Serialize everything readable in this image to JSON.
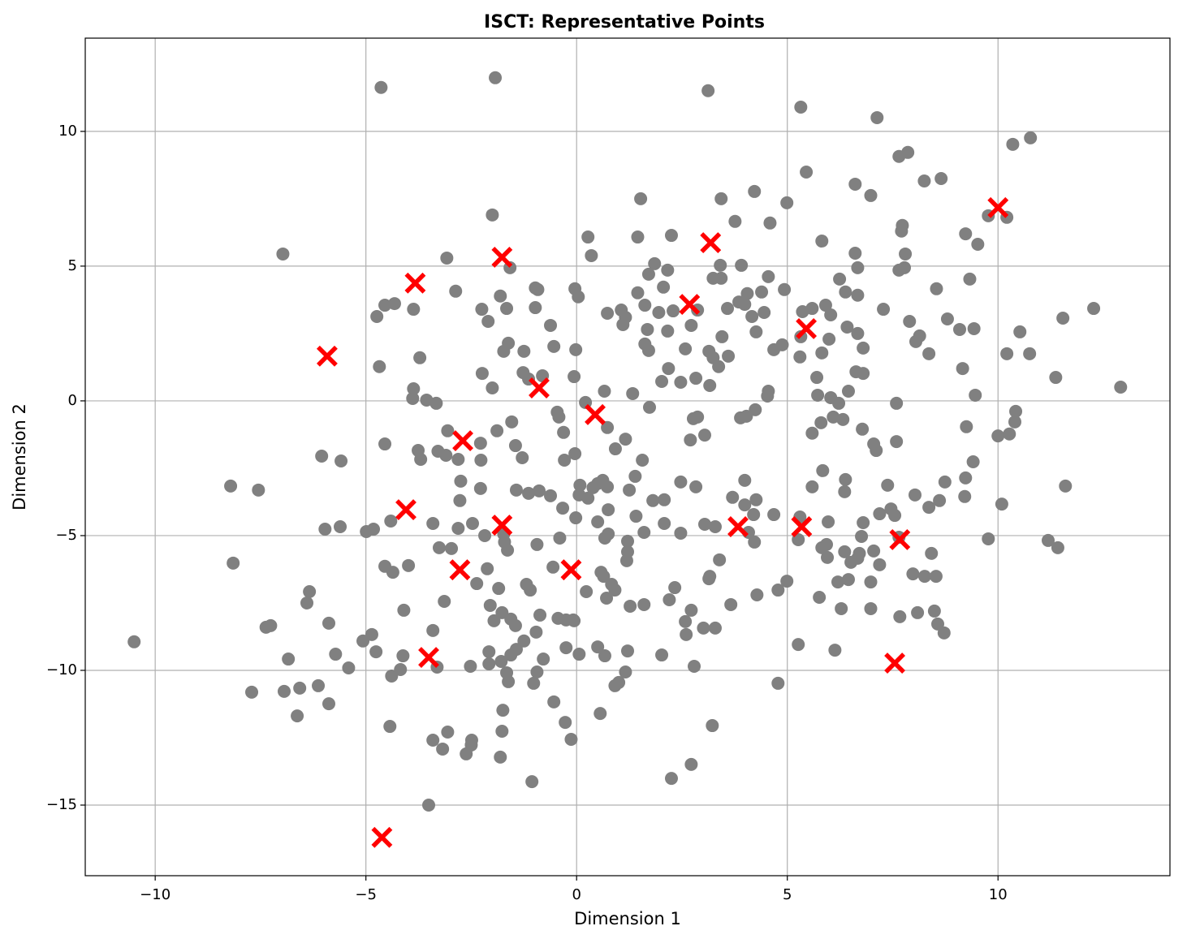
{
  "chart_data": {
    "type": "scatter",
    "title": "ISCT: Representative Points",
    "xlabel": "Dimension 1",
    "ylabel": "Dimension 2",
    "xlim": [
      -11.66,
      14.08
    ],
    "ylim": [
      -17.62,
      13.46
    ],
    "xticks": [
      {
        "value": -10,
        "label": "−10"
      },
      {
        "value": -5,
        "label": "−5"
      },
      0,
      5,
      10
    ],
    "yticks": [
      {
        "value": -15,
        "label": "−15"
      },
      {
        "value": -10,
        "label": "−10"
      },
      {
        "value": -5,
        "label": "−5"
      },
      0,
      5,
      10
    ],
    "grid": true,
    "series": [
      {
        "color": "#808080",
        "marker": "circle",
        "x": [
          -4.64,
          -1.93,
          3.12,
          5.32,
          7.13,
          7.86,
          7.65,
          10.35,
          10.77,
          5.45,
          8.25,
          8.65,
          6.61,
          6.98,
          4.22,
          1.52,
          3.43,
          4.99,
          3.76,
          4.59,
          7.73,
          7.71,
          9.77,
          10.21,
          9.23,
          9.52,
          -2.0,
          -6.97,
          -3.08,
          0.27,
          2.25,
          1.45,
          5.82,
          0.35,
          3.41,
          6.61,
          7.8,
          6.67,
          7.65,
          7.78,
          1.85,
          2.16,
          3.91,
          -1.58,
          1.71,
          3.24,
          3.43,
          4.55,
          6.24,
          9.33,
          8.54,
          -0.98,
          -0.92,
          -0.04,
          2.06,
          4.93,
          4.39,
          4.05,
          -2.87,
          -4.55,
          -4.32,
          -1.81,
          -1.66,
          0.04,
          1.45,
          1.62,
          6.38,
          5.91,
          6.67,
          7.28,
          12.27,
          -4.74,
          -3.87,
          -2.25,
          -2.1,
          -0.98,
          0.73,
          1.06,
          1.1,
          1.16,
          1.95,
          2.29,
          2.87,
          3.58,
          3.85,
          3.99,
          4.45,
          4.16,
          5.36,
          5.59,
          6.03,
          7.9,
          8.8,
          9.09,
          9.43,
          10.52,
          11.54,
          2.72,
          2.16,
          1.68,
          -0.62,
          3.45,
          4.26,
          5.32,
          5.99,
          6.42,
          6.67,
          8.14,
          8.05,
          -1.62,
          -1.73,
          -1.25,
          -0.54,
          -0.02,
          1.62,
          1.71,
          2.58,
          3.14,
          3.24,
          3.6,
          3.37,
          4.68,
          4.88,
          5.3,
          5.82,
          6.8,
          8.36,
          10.21,
          10.75,
          -3.72,
          -4.68,
          -2.24,
          2.18,
          2.83,
          5.7,
          6.63,
          6.8,
          9.16,
          11.37,
          12.91,
          -3.87,
          -3.56,
          -3.89,
          -3.33,
          -2.0,
          -1.27,
          -1.14,
          -0.81,
          -0.06,
          0.66,
          1.33,
          2.02,
          2.47,
          3.16,
          4.55,
          4.53,
          5.72,
          6.03,
          6.45,
          6.22,
          7.59,
          9.46,
          10.42,
          10.4,
          -0.46,
          -0.42,
          0.21,
          1.73,
          2.77,
          2.87,
          4.24,
          3.89,
          4.03,
          6.09,
          6.32,
          5.8,
          9.25,
          -1.54,
          0.73,
          -0.31,
          6.78,
          10.0,
          10.27,
          5.59,
          2.7,
          3.04,
          -3.06,
          -4.55,
          -2.28,
          -1.89,
          -1.45,
          1.16,
          0.92,
          7.05,
          7.59,
          7.11,
          -3.76,
          -3.7,
          -3.29,
          -3.1,
          -2.81,
          -2.27,
          -1.29,
          -0.29,
          -0.04,
          -6.05,
          -5.59,
          1.56,
          9.41,
          5.84,
          -2.75,
          1.39,
          0.62,
          0.39,
          0.08,
          0.5,
          0.73,
          2.47,
          2.83,
          3.99,
          5.59,
          6.38,
          7.38,
          8.74,
          9.23,
          11.6,
          -8.21,
          -7.55,
          -2.28,
          -1.43,
          -1.14,
          -0.89,
          -0.62,
          0.06,
          0.27,
          1.25,
          1.81,
          2.08,
          3.7,
          4.26,
          6.36,
          8.03,
          8.61,
          8.36,
          9.21,
          10.09,
          -2.77,
          -0.33,
          7.46,
          7.19,
          7.55,
          0.75,
          3.99,
          4.2,
          4.68,
          5.3,
          5.97,
          6.8,
          -4.41,
          -3.41,
          -2.47,
          -0.02,
          0.5,
          1.41,
          2.08,
          3.04,
          3.29,
          -5.97,
          -5.61,
          -4.99,
          -4.82,
          -2.81,
          -2.18,
          -1.73,
          -1.64,
          -1.71,
          -0.4,
          0.67,
          0.75,
          1.6,
          2.47,
          4.08,
          4.22,
          5.26,
          5.93,
          5.82,
          5.95,
          6.76,
          7.65,
          9.77,
          11.19,
          11.42,
          -8.15,
          -3.26,
          -2.97,
          -0.94,
          1.21,
          1.21,
          1.19,
          6.36,
          6.67,
          6.51,
          6.71,
          7.05,
          8.42,
          7.19,
          3.39,
          -4.55,
          -4.36,
          -3.99,
          -2.12,
          -0.56,
          0.58,
          7.98,
          8.26,
          8.53,
          3.16,
          3.14,
          6.2,
          6.45,
          6.98,
          4.99,
          -2.37,
          -1.19,
          -1.1,
          -1.85,
          2.33,
          0.64,
          0.83,
          0.91,
          0.23,
          -6.34,
          -6.4,
          -3.14,
          -2.05,
          0.71,
          1.27,
          1.6,
          3.66,
          4.28,
          4.78,
          5.76,
          6.28,
          6.98,
          2.2,
          -4.1,
          2.72,
          8.09,
          8.49,
          7.67,
          -1.77,
          -1.56,
          -1.96,
          -0.87,
          -0.44,
          -0.08,
          -0.25,
          2.58,
          -5.88,
          -7.26,
          -7.37,
          -1.45,
          -0.96,
          -0.06,
          8.57,
          8.72,
          3.01,
          3.29,
          -3.41,
          2.6,
          -5.07,
          -4.86,
          -10.5,
          -1.25,
          -4.76,
          -6.84,
          -5.72,
          -4.12,
          -2.08,
          -1.56,
          -1.43,
          -0.25,
          0.06,
          0.5,
          0.67,
          1.21,
          2.02,
          5.26,
          6.13,
          -0.79,
          -3.31,
          -5.41,
          -2.52,
          -2.08,
          -1.79,
          -1.66,
          -0.94,
          -4.18,
          -4.39,
          1.16,
          1.0,
          0.91,
          2.79,
          -6.13,
          -6.57,
          -6.94,
          -7.71,
          -6.63,
          -5.88,
          -1.62,
          -1.02,
          4.78,
          -0.54,
          0.56,
          -1.75,
          -4.43,
          3.22,
          -3.06,
          -1.77,
          -0.27,
          -0.13,
          -3.41,
          -2.49,
          -2.5,
          -3.18,
          -2.62,
          -1.81,
          2.72,
          2.25,
          -1.06,
          -3.51
        ],
        "values": [
          11.63,
          11.99,
          11.51,
          10.9,
          10.51,
          9.22,
          9.07,
          9.52,
          9.76,
          8.49,
          8.16,
          8.25,
          8.04,
          7.62,
          7.77,
          7.5,
          7.5,
          7.35,
          6.66,
          6.6,
          6.51,
          6.3,
          6.87,
          6.81,
          6.2,
          5.81,
          6.9,
          5.45,
          5.3,
          6.08,
          6.14,
          6.08,
          5.93,
          5.39,
          5.03,
          5.48,
          5.45,
          4.94,
          4.85,
          4.94,
          5.09,
          4.85,
          5.03,
          4.94,
          4.7,
          4.55,
          4.55,
          4.61,
          4.52,
          4.52,
          4.16,
          4.19,
          4.13,
          4.16,
          4.22,
          4.13,
          4.04,
          3.98,
          4.07,
          3.55,
          3.61,
          3.89,
          3.43,
          3.86,
          4.01,
          3.55,
          4.04,
          3.55,
          3.92,
          3.4,
          3.43,
          3.13,
          3.4,
          3.4,
          2.95,
          3.46,
          3.25,
          3.37,
          2.83,
          3.1,
          3.28,
          3.34,
          3.37,
          3.43,
          3.67,
          3.58,
          3.28,
          3.13,
          3.31,
          3.43,
          3.19,
          2.95,
          3.04,
          2.65,
          2.68,
          2.56,
          3.07,
          2.8,
          2.59,
          2.65,
          2.8,
          2.38,
          2.56,
          2.38,
          2.29,
          2.74,
          2.5,
          2.41,
          2.2,
          2.14,
          1.84,
          1.84,
          2.02,
          1.9,
          2.11,
          1.87,
          1.93,
          1.84,
          1.6,
          1.66,
          1.27,
          1.9,
          2.08,
          1.63,
          1.78,
          1.96,
          1.75,
          1.75,
          1.75,
          1.6,
          1.27,
          1.02,
          1.2,
          0.84,
          0.87,
          1.08,
          1.02,
          1.2,
          0.87,
          0.51,
          0.45,
          0.03,
          0.09,
          -0.09,
          0.48,
          1.05,
          0.81,
          0.93,
          0.9,
          0.36,
          0.27,
          0.72,
          0.69,
          0.57,
          0.36,
          0.18,
          0.21,
          0.12,
          0.36,
          -0.09,
          -0.09,
          0.21,
          -0.39,
          -0.78,
          -0.42,
          -0.6,
          -0.06,
          -0.24,
          -0.66,
          -0.6,
          -0.33,
          -0.63,
          -0.57,
          -0.6,
          -0.69,
          -0.81,
          -0.96,
          -0.78,
          -0.99,
          -1.17,
          -1.05,
          -1.3,
          -1.23,
          -1.2,
          -1.45,
          -1.27,
          -1.11,
          -1.6,
          -1.57,
          -1.11,
          -1.66,
          -1.42,
          -1.78,
          -1.6,
          -1.51,
          -1.84,
          -1.84,
          -2.17,
          -1.87,
          -2.02,
          -2.17,
          -2.2,
          -2.11,
          -2.2,
          -1.96,
          -2.05,
          -2.23,
          -2.2,
          -2.26,
          -2.59,
          -2.98,
          -2.8,
          -2.95,
          -3.22,
          -3.13,
          -3.07,
          -3.19,
          -3.01,
          -3.19,
          -2.95,
          -3.19,
          -2.92,
          -3.13,
          -3.01,
          -2.86,
          -3.16,
          -3.16,
          -3.31,
          -3.25,
          -3.31,
          -3.43,
          -3.34,
          -3.52,
          -3.49,
          -3.61,
          -3.31,
          -3.7,
          -3.67,
          -3.58,
          -3.67,
          -3.37,
          -3.49,
          -3.7,
          -3.95,
          -3.55,
          -3.83,
          -3.7,
          -3.98,
          -4.01,
          -4.19,
          -4.25,
          -4.04,
          -3.86,
          -4.22,
          -4.22,
          -4.31,
          -4.49,
          -4.52,
          -4.46,
          -4.55,
          -4.55,
          -4.34,
          -4.49,
          -4.28,
          -4.55,
          -4.58,
          -4.67,
          -4.76,
          -4.67,
          -4.85,
          -4.76,
          -4.73,
          -5.0,
          -4.94,
          -5.54,
          -5.24,
          -5.09,
          -5.09,
          -4.94,
          -4.88,
          -4.91,
          -4.88,
          -5.24,
          -5.15,
          -5.33,
          -5.45,
          -5.81,
          -5.03,
          -5.06,
          -5.12,
          -5.18,
          -5.45,
          -6.02,
          -5.45,
          -5.48,
          -5.33,
          -5.21,
          -5.6,
          -5.93,
          -5.6,
          -5.84,
          -5.99,
          -5.66,
          -5.57,
          -5.66,
          -6.08,
          -5.9,
          -6.14,
          -6.36,
          -6.11,
          -6.23,
          -6.17,
          -6.36,
          -6.42,
          -6.51,
          -6.51,
          -6.51,
          -6.6,
          -6.72,
          -6.63,
          -6.72,
          -6.69,
          -6.78,
          -6.81,
          -7.02,
          -6.96,
          -6.93,
          -6.51,
          -6.81,
          -7.02,
          -7.08,
          -7.08,
          -7.5,
          -7.44,
          -7.59,
          -7.32,
          -7.62,
          -7.56,
          -7.56,
          -7.2,
          -7.02,
          -7.29,
          -7.71,
          -7.71,
          -7.38,
          -7.77,
          -7.77,
          -7.86,
          -7.8,
          -8.01,
          -7.86,
          -8.1,
          -8.16,
          -7.95,
          -8.07,
          -8.13,
          -8.13,
          -8.19,
          -8.25,
          -8.34,
          -8.4,
          -8.34,
          -8.58,
          -8.16,
          -8.28,
          -8.61,
          -8.43,
          -8.43,
          -8.52,
          -8.67,
          -8.91,
          -8.67,
          -8.94,
          -8.91,
          -9.31,
          -9.58,
          -9.4,
          -9.46,
          -9.31,
          -9.43,
          -9.22,
          -9.16,
          -9.4,
          -9.13,
          -9.46,
          -9.28,
          -9.43,
          -9.04,
          -9.25,
          -9.58,
          -9.88,
          -9.91,
          -9.85,
          -9.76,
          -9.67,
          -10.09,
          -10.06,
          -9.97,
          -10.21,
          -10.06,
          -10.45,
          -10.57,
          -9.85,
          -10.57,
          -10.66,
          -10.78,
          -10.81,
          -11.69,
          -11.24,
          -10.42,
          -10.48,
          -10.48,
          -11.17,
          -11.6,
          -11.48,
          -12.08,
          -12.05,
          -12.29,
          -12.26,
          -11.93,
          -12.56,
          -12.59,
          -12.59,
          -12.77,
          -12.92,
          -13.1,
          -13.22,
          -13.49,
          -14.01,
          -14.13,
          -15.0
        ]
      },
      {
        "color": "#ff0000",
        "marker": "x",
        "x": [
          -5.92,
          -3.83,
          -1.77,
          3.18,
          2.68,
          5.45,
          10.0,
          -0.89,
          0.44,
          -2.7,
          -4.05,
          -1.77,
          3.83,
          5.34,
          7.67,
          -2.77,
          -0.13,
          -3.51,
          7.55,
          -4.62
        ],
        "values": [
          1.66,
          4.37,
          5.33,
          5.87,
          3.58,
          2.68,
          7.17,
          0.48,
          -0.51,
          -1.48,
          -4.04,
          -4.61,
          -4.67,
          -4.67,
          -5.15,
          -6.27,
          -6.27,
          -9.52,
          -9.73,
          -16.2
        ]
      }
    ]
  }
}
